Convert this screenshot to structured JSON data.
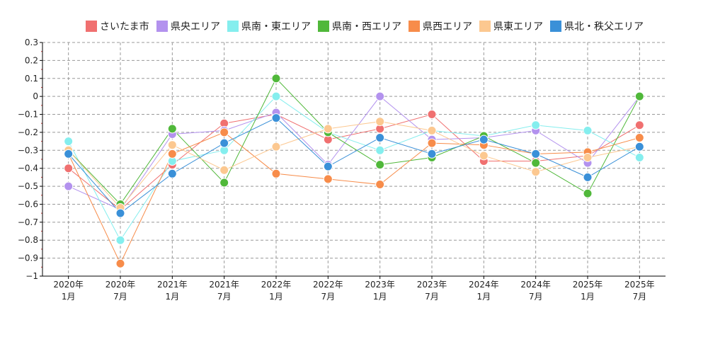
{
  "chart_data": {
    "type": "line",
    "categories": [
      "2020年\n1月",
      "2020年\n7月",
      "2021年\n1月",
      "2021年\n7月",
      "2022年\n1月",
      "2022年\n7月",
      "2023年\n1月",
      "2023年\n7月",
      "2024年\n1月",
      "2024年\n7月",
      "2025年\n1月",
      "2025年\n7月"
    ],
    "ylim": [
      -1,
      0.3
    ],
    "yticks": [
      0.3,
      0.2,
      0.1,
      0,
      -0.1,
      -0.2,
      -0.3,
      -0.4,
      -0.5,
      -0.6,
      -0.7,
      -0.8,
      -0.9,
      -1
    ],
    "ytick_labels": [
      "0.3",
      "0.2",
      "0.1",
      "0",
      "−0.1",
      "−0.2",
      "−0.3",
      "−0.4",
      "−0.5",
      "−0.6",
      "−0.7",
      "−0.8",
      "−0.9",
      "−1"
    ],
    "grid": true,
    "legend_position": "top",
    "series": [
      {
        "name": "さいたま市",
        "color": "#f07070",
        "values": [
          -0.4,
          -0.63,
          -0.38,
          -0.15,
          -0.1,
          -0.24,
          -0.18,
          -0.1,
          -0.36,
          -0.36,
          -0.33,
          -0.16
        ]
      },
      {
        "name": "県央エリア",
        "color": "#b392ee",
        "values": [
          -0.5,
          -0.63,
          -0.21,
          -0.19,
          -0.09,
          -0.38,
          0.0,
          -0.24,
          -0.23,
          -0.19,
          -0.37,
          0.0
        ]
      },
      {
        "name": "県南・東エリア",
        "color": "#85eeee",
        "values": [
          -0.25,
          -0.8,
          -0.36,
          -0.3,
          0.0,
          -0.2,
          -0.3,
          -0.19,
          -0.22,
          -0.16,
          -0.19,
          -0.34
        ]
      },
      {
        "name": "県南・西エリア",
        "color": "#50b83a",
        "values": [
          -0.3,
          -0.6,
          -0.18,
          -0.48,
          0.1,
          -0.2,
          -0.38,
          -0.34,
          -0.22,
          -0.37,
          -0.54,
          0.0
        ]
      },
      {
        "name": "県西エリア",
        "color": "#f78c4a",
        "values": [
          -0.32,
          -0.93,
          -0.32,
          -0.2,
          -0.43,
          -0.46,
          -0.49,
          -0.26,
          -0.27,
          -0.32,
          -0.31,
          -0.23
        ]
      },
      {
        "name": "県東エリア",
        "color": "#fcc890",
        "values": [
          -0.3,
          -0.62,
          -0.27,
          -0.41,
          -0.28,
          -0.18,
          -0.14,
          -0.19,
          -0.33,
          -0.42,
          -0.34,
          -0.28
        ]
      },
      {
        "name": "県北・秩父エリア",
        "color": "#3a90d8",
        "values": [
          -0.32,
          -0.65,
          -0.43,
          -0.26,
          -0.12,
          -0.39,
          -0.23,
          -0.32,
          -0.24,
          -0.32,
          -0.45,
          -0.28
        ]
      }
    ]
  }
}
